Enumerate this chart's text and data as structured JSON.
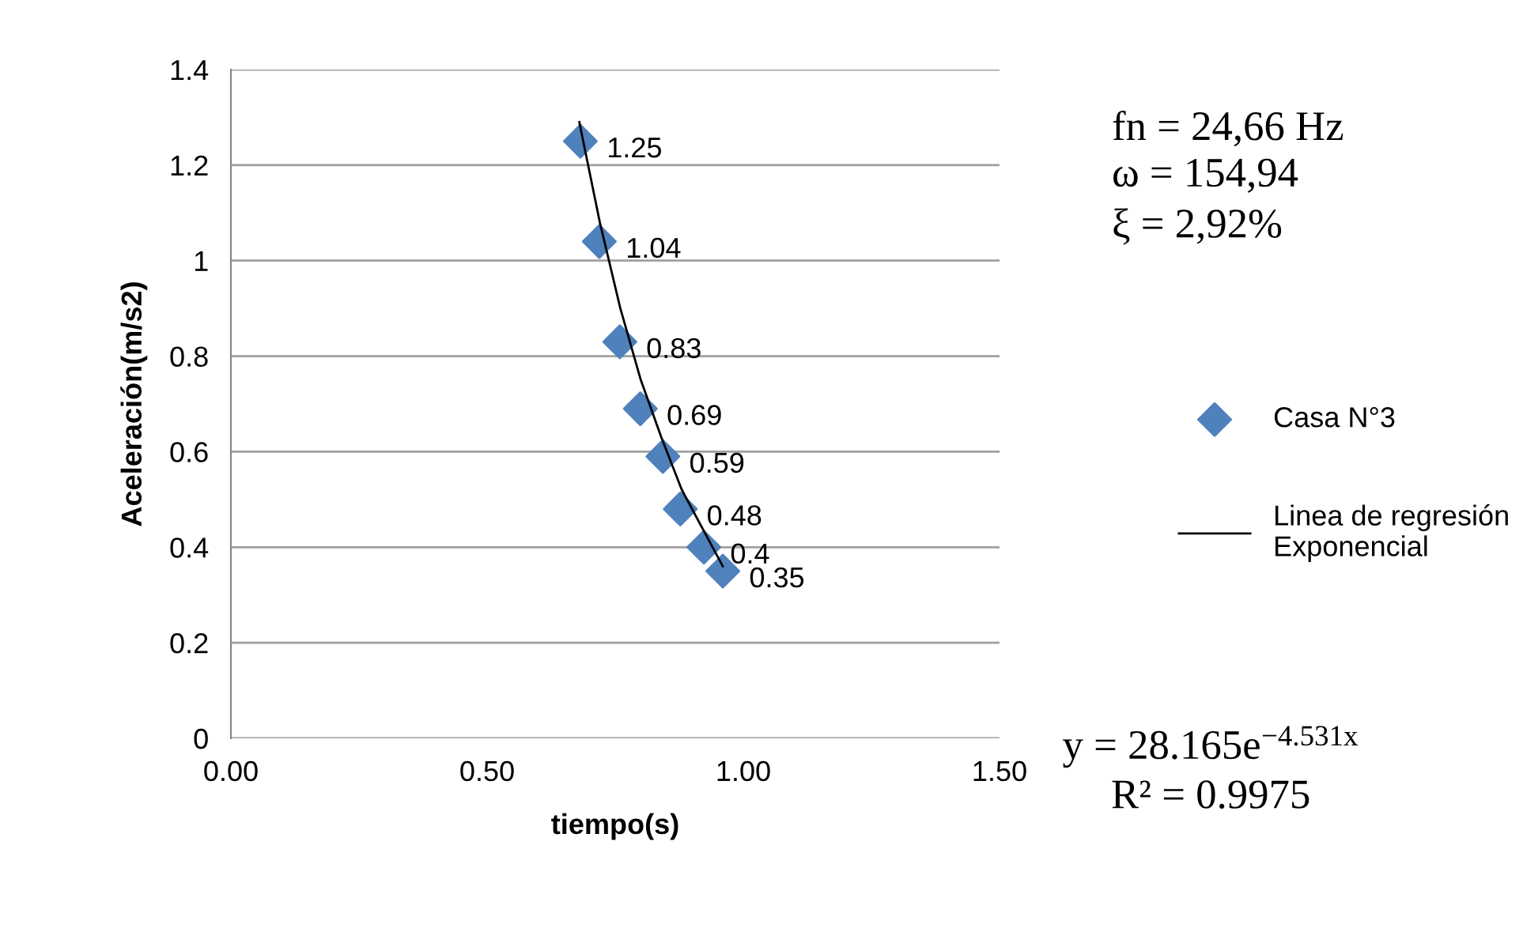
{
  "chart_data": {
    "type": "scatter",
    "xlabel": "tiempo(s)",
    "ylabel": "Aceleración(m/s2)",
    "xlim": [
      0,
      1.5
    ],
    "xticks": [
      {
        "value": 0,
        "label": "0.00"
      },
      {
        "value": 0.5,
        "label": "0.50"
      },
      {
        "value": 1,
        "label": "1.00"
      },
      {
        "value": 1.5,
        "label": "1.50"
      }
    ],
    "ylim": [
      0,
      1.4
    ],
    "yticks": [
      0,
      0.2,
      0.4,
      0.6,
      0.8,
      1,
      1.2,
      1.4
    ],
    "grid": "y",
    "legend": "right",
    "series": [
      {
        "name": "Casa N°3",
        "marker": "diamond",
        "color": "#4f81bd",
        "x": [
          0.682,
          0.719,
          0.759,
          0.799,
          0.843,
          0.877,
          0.923,
          0.96
        ],
        "values": [
          1.25,
          1.04,
          0.83,
          0.69,
          0.59,
          0.48,
          0.4,
          0.35
        ],
        "value_labels": [
          "1.25",
          "1.04",
          "0.83",
          "0.69",
          "0.59",
          "0.48",
          "0.4",
          "0.35"
        ]
      },
      {
        "name": "Linea de regresión\nExponencial",
        "type": "line",
        "color": "#000000",
        "line_style": "solid",
        "x": [
          0.68,
          0.72,
          0.76,
          0.8,
          0.84,
          0.88,
          0.92,
          0.96
        ],
        "values": [
          1.29,
          1.08,
          0.9,
          0.75,
          0.63,
          0.52,
          0.44,
          0.36
        ]
      }
    ],
    "annotations": [
      "fn = 24,66 Hz",
      "ω = 154,94",
      "ξ = 2,92%",
      "y = 28.165e$^{−4.531x}$",
      "R² = 0.9975"
    ]
  }
}
